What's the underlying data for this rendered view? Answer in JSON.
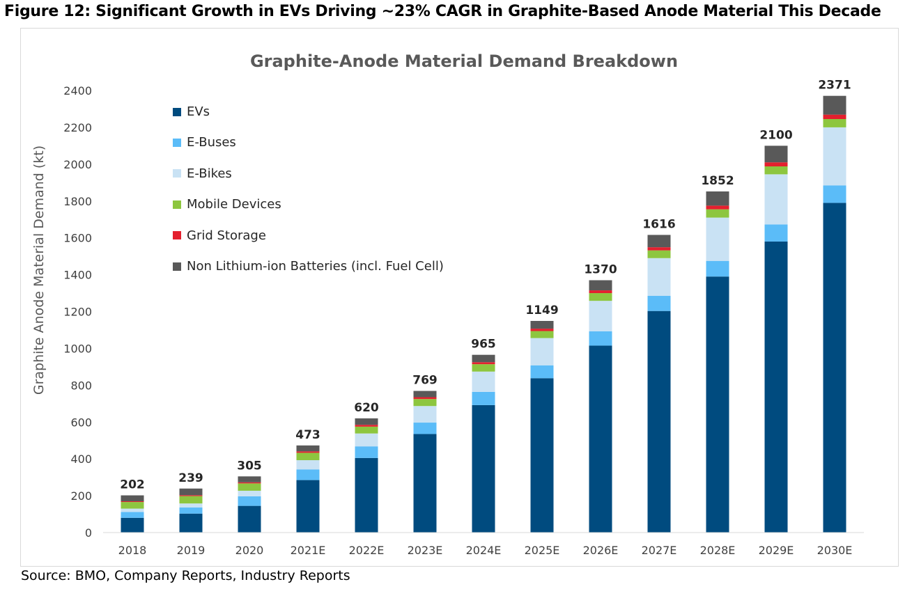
{
  "figure_title": "Figure 12: Significant Growth in EVs Driving ~23% CAGR in Graphite-Based Anode Material This Decade",
  "source": "Source: BMO, Company Reports, Industry Reports",
  "chart_data": {
    "type": "bar",
    "stacked": true,
    "title": "Graphite-Anode Material Demand Breakdown",
    "xlabel": "",
    "ylabel": "Graphite Anode Material Demand (kt)",
    "ylim": [
      0,
      2400
    ],
    "yticks": [
      0,
      200,
      400,
      600,
      800,
      1000,
      1200,
      1400,
      1600,
      1800,
      2000,
      2200,
      2400
    ],
    "grid": false,
    "legend_position": "top-left",
    "categories": [
      "2018",
      "2019",
      "2020",
      "2021E",
      "2022E",
      "2023E",
      "2024E",
      "2025E",
      "2026E",
      "2027E",
      "2028E",
      "2029E",
      "2030E"
    ],
    "totals": [
      202,
      239,
      305,
      473,
      620,
      769,
      965,
      1149,
      1370,
      1616,
      1852,
      2100,
      2371
    ],
    "series": [
      {
        "name": "EVs",
        "color": "#004b7f",
        "values": [
          80,
          103,
          145,
          285,
          405,
          535,
          692,
          838,
          1015,
          1203,
          1390,
          1580,
          1790
        ]
      },
      {
        "name": "E-Buses",
        "color": "#5bbcf8",
        "values": [
          32,
          33,
          52,
          58,
          63,
          62,
          72,
          70,
          78,
          82,
          85,
          93,
          95
        ]
      },
      {
        "name": "E-Bikes",
        "color": "#c9e2f4",
        "values": [
          18,
          22,
          30,
          50,
          70,
          90,
          110,
          148,
          165,
          205,
          235,
          272,
          315
        ]
      },
      {
        "name": "Mobile Devices",
        "color": "#8dc63f",
        "values": [
          36,
          40,
          40,
          40,
          37,
          38,
          40,
          38,
          42,
          42,
          45,
          43,
          45
        ]
      },
      {
        "name": "Grid Storage",
        "color": "#e4202e",
        "values": [
          4,
          5,
          6,
          8,
          10,
          10,
          11,
          13,
          15,
          17,
          20,
          22,
          24
        ]
      },
      {
        "name": "Non Lithium-ion Batteries (incl. Fuel Cell)",
        "color": "#595959",
        "values": [
          32,
          36,
          32,
          32,
          35,
          34,
          40,
          42,
          55,
          67,
          77,
          90,
          102
        ]
      }
    ]
  }
}
